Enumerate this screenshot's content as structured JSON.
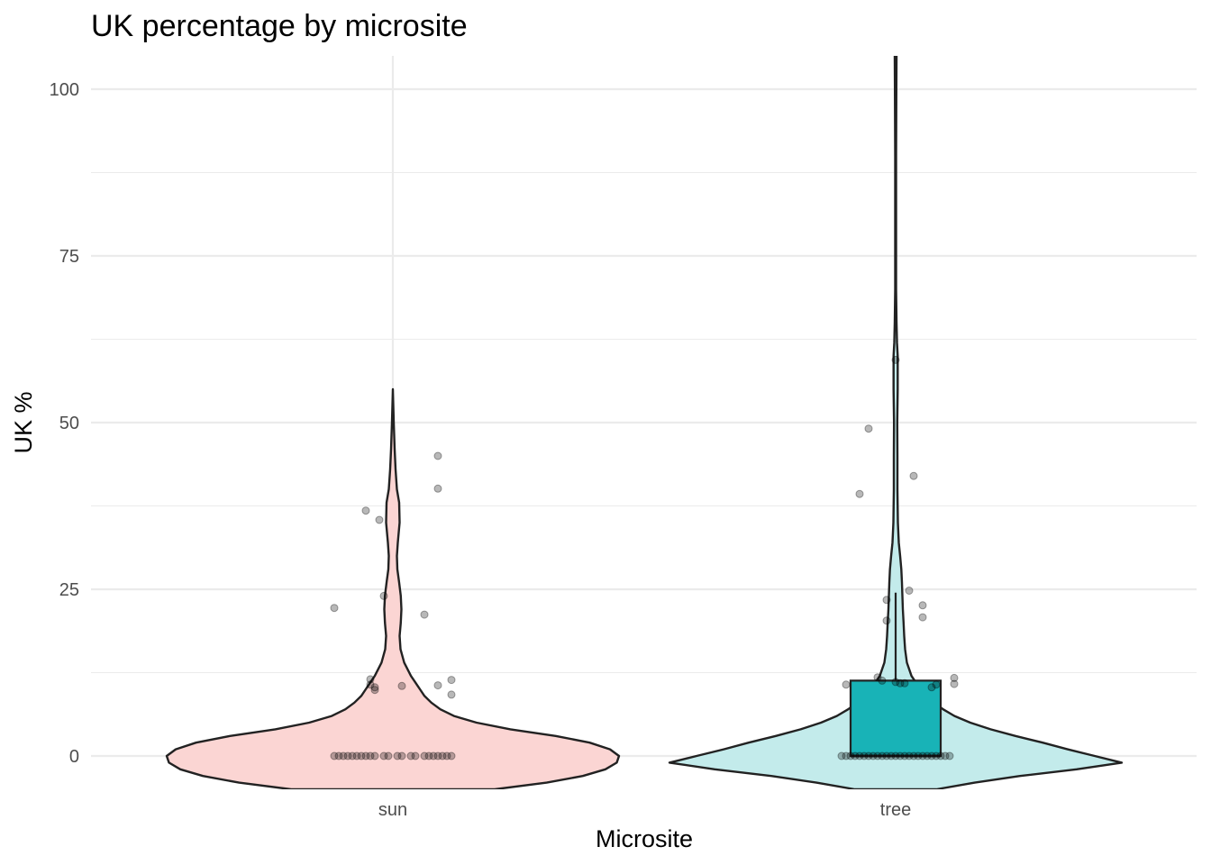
{
  "chart_data": {
    "type": "violin",
    "title": "UK percentage by microsite",
    "xlabel": "Microsite",
    "ylabel": "UK %",
    "categories": [
      "sun",
      "tree"
    ],
    "ylim": [
      -5,
      105
    ],
    "yticks": [
      0,
      25,
      50,
      75,
      100
    ],
    "grid": true,
    "colors": {
      "sun_fill": "#fbd5d3",
      "tree_fill": "#c3ebeb",
      "box_fill": "#18b3b7",
      "outline": "#222222",
      "points": "#000000"
    },
    "violins": [
      {
        "category": "sun",
        "max": 55,
        "profile": [
          [
            -5,
            0.45
          ],
          [
            -4,
            0.68
          ],
          [
            -3,
            0.84
          ],
          [
            -2,
            0.94
          ],
          [
            -1,
            0.99
          ],
          [
            0,
            1.0
          ],
          [
            1,
            0.96
          ],
          [
            2,
            0.87
          ],
          [
            3,
            0.72
          ],
          [
            4,
            0.52
          ],
          [
            5,
            0.37
          ],
          [
            6,
            0.27
          ],
          [
            7,
            0.21
          ],
          [
            8,
            0.17
          ],
          [
            9,
            0.14
          ],
          [
            10,
            0.12
          ],
          [
            11,
            0.1
          ],
          [
            12,
            0.08
          ],
          [
            14,
            0.05
          ],
          [
            16,
            0.034
          ],
          [
            18,
            0.03
          ],
          [
            20,
            0.035
          ],
          [
            22,
            0.038
          ],
          [
            24,
            0.035
          ],
          [
            26,
            0.028
          ],
          [
            28,
            0.02
          ],
          [
            30,
            0.018
          ],
          [
            32,
            0.022
          ],
          [
            35,
            0.03
          ],
          [
            38,
            0.028
          ],
          [
            40,
            0.018
          ],
          [
            43,
            0.012
          ],
          [
            46,
            0.008
          ],
          [
            50,
            0.004
          ],
          [
            55,
            0.0
          ]
        ]
      },
      {
        "category": "tree",
        "max": 105,
        "profile": [
          [
            -5,
            0.18
          ],
          [
            -4,
            0.35
          ],
          [
            -3,
            0.55
          ],
          [
            -2,
            0.8
          ],
          [
            -1,
            1.0
          ],
          [
            0,
            0.88
          ],
          [
            1,
            0.76
          ],
          [
            2,
            0.65
          ],
          [
            3,
            0.53
          ],
          [
            4,
            0.42
          ],
          [
            5,
            0.33
          ],
          [
            6,
            0.26
          ],
          [
            7,
            0.21
          ],
          [
            8,
            0.17
          ],
          [
            9,
            0.13
          ],
          [
            10,
            0.11
          ],
          [
            12,
            0.07
          ],
          [
            14,
            0.05
          ],
          [
            16,
            0.042
          ],
          [
            18,
            0.038
          ],
          [
            20,
            0.035
          ],
          [
            22,
            0.032
          ],
          [
            24,
            0.03
          ],
          [
            26,
            0.028
          ],
          [
            28,
            0.025
          ],
          [
            30,
            0.02
          ],
          [
            32,
            0.014
          ],
          [
            35,
            0.01
          ],
          [
            40,
            0.008
          ],
          [
            45,
            0.008
          ],
          [
            50,
            0.007
          ],
          [
            55,
            0.009
          ],
          [
            60,
            0.009
          ],
          [
            62,
            0.006
          ],
          [
            65,
            0.004
          ],
          [
            70,
            0.002
          ],
          [
            80,
            0.002
          ],
          [
            90,
            0.002
          ],
          [
            100,
            0.003
          ],
          [
            105,
            0.004
          ]
        ]
      }
    ],
    "boxes": [
      {
        "category": "tree",
        "q1": 0,
        "median": 0,
        "q3": 11.3,
        "whisker_low": 0,
        "whisker_high": 24.5
      }
    ],
    "points": {
      "sun": [
        [
          -0.13,
          0
        ],
        [
          -0.12,
          0
        ],
        [
          -0.11,
          0
        ],
        [
          -0.1,
          0
        ],
        [
          -0.09,
          0
        ],
        [
          -0.08,
          0
        ],
        [
          -0.07,
          0
        ],
        [
          -0.06,
          0
        ],
        [
          -0.05,
          0
        ],
        [
          -0.04,
          0
        ],
        [
          -0.02,
          0
        ],
        [
          -0.01,
          0
        ],
        [
          0.01,
          0
        ],
        [
          0.02,
          0
        ],
        [
          0.04,
          0
        ],
        [
          0.05,
          0
        ],
        [
          0.07,
          0
        ],
        [
          0.08,
          0
        ],
        [
          0.09,
          0
        ],
        [
          0.1,
          0
        ],
        [
          0.11,
          0
        ],
        [
          0.12,
          0
        ],
        [
          0.13,
          0
        ],
        [
          -0.13,
          22.2
        ],
        [
          -0.06,
          36.8
        ],
        [
          -0.03,
          35.4
        ],
        [
          -0.02,
          24.0
        ],
        [
          -0.05,
          11.5
        ],
        [
          -0.05,
          10.7
        ],
        [
          -0.04,
          10.3
        ],
        [
          -0.04,
          9.9
        ],
        [
          0.02,
          10.5
        ],
        [
          0.07,
          21.2
        ],
        [
          0.1,
          45.0
        ],
        [
          0.1,
          40.1
        ],
        [
          0.1,
          10.6
        ],
        [
          0.13,
          11.4
        ],
        [
          0.13,
          9.2
        ]
      ],
      "tree": [
        [
          -0.12,
          0
        ],
        [
          -0.11,
          0
        ],
        [
          -0.1,
          0
        ],
        [
          -0.09,
          0
        ],
        [
          -0.08,
          0
        ],
        [
          -0.07,
          0
        ],
        [
          -0.06,
          0
        ],
        [
          -0.05,
          0
        ],
        [
          -0.04,
          0
        ],
        [
          -0.03,
          0
        ],
        [
          -0.02,
          0
        ],
        [
          -0.01,
          0
        ],
        [
          0.0,
          0
        ],
        [
          0.01,
          0
        ],
        [
          0.02,
          0
        ],
        [
          0.03,
          0
        ],
        [
          0.04,
          0
        ],
        [
          0.05,
          0
        ],
        [
          0.06,
          0
        ],
        [
          0.07,
          0
        ],
        [
          0.08,
          0
        ],
        [
          0.09,
          0
        ],
        [
          0.1,
          0
        ],
        [
          0.11,
          0
        ],
        [
          0.12,
          0
        ],
        [
          0.0,
          59.4
        ],
        [
          -0.06,
          49.1
        ],
        [
          -0.08,
          39.3
        ],
        [
          0.04,
          42.0
        ],
        [
          -0.02,
          23.4
        ],
        [
          -0.02,
          20.3
        ],
        [
          0.03,
          24.8
        ],
        [
          0.06,
          22.6
        ],
        [
          0.06,
          20.8
        ],
        [
          -0.11,
          10.7
        ],
        [
          -0.04,
          11.8
        ],
        [
          -0.03,
          11.3
        ],
        [
          0.0,
          11.1
        ],
        [
          0.01,
          10.9
        ],
        [
          0.02,
          10.9
        ],
        [
          0.08,
          10.3
        ],
        [
          0.09,
          10.7
        ],
        [
          0.13,
          11.7
        ],
        [
          0.13,
          10.8
        ]
      ]
    }
  }
}
